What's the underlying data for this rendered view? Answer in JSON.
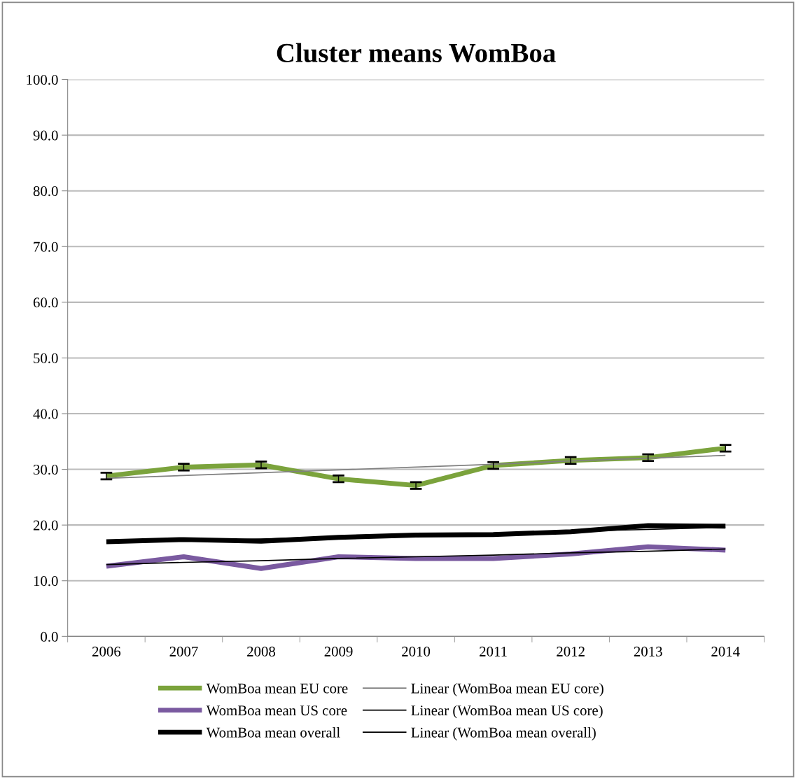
{
  "chart_data": {
    "type": "line",
    "title": "Cluster means WomBoa",
    "categories": [
      "2006",
      "2007",
      "2008",
      "2009",
      "2010",
      "2011",
      "2012",
      "2013",
      "2014"
    ],
    "series": [
      {
        "name": "WomBoa mean EU core",
        "color": "#7ba33c",
        "values": [
          28.8,
          30.4,
          30.8,
          28.3,
          27.1,
          30.7,
          31.6,
          32.1,
          33.8
        ],
        "errors": [
          0.6,
          0.6,
          0.6,
          0.6,
          0.6,
          0.6,
          0.6,
          0.6,
          0.6
        ]
      },
      {
        "name": "WomBoa mean US core",
        "color": "#7a5aa0",
        "values": [
          12.6,
          14.3,
          12.2,
          14.3,
          14.0,
          14.0,
          14.8,
          16.1,
          15.5
        ]
      },
      {
        "name": "WomBoa mean overall",
        "color": "#000000",
        "values": [
          17.0,
          17.4,
          17.1,
          17.8,
          18.2,
          18.3,
          18.8,
          19.9,
          19.8
        ]
      },
      {
        "name": "Linear (WomBoa mean EU core)",
        "color": "#808080",
        "values": [
          28.4,
          28.9,
          29.4,
          29.9,
          30.4,
          30.9,
          31.5,
          32.0,
          32.5
        ]
      },
      {
        "name": "Linear (WomBoa mean US core)",
        "color": "#000000",
        "values": [
          12.9,
          13.3,
          13.6,
          14.0,
          14.3,
          14.6,
          15.0,
          15.3,
          15.7
        ]
      },
      {
        "name": "Linear (WomBoa mean overall)",
        "color": "#000000",
        "values": [
          16.8,
          17.2,
          17.5,
          17.9,
          18.2,
          18.5,
          18.9,
          19.2,
          19.6
        ]
      }
    ],
    "ylim": [
      0,
      100
    ],
    "yticks": [
      {
        "value": 0,
        "label": "0.0"
      },
      {
        "value": 10,
        "label": "10.0"
      },
      {
        "value": 20,
        "label": "20.0"
      },
      {
        "value": 30,
        "label": "30.0"
      },
      {
        "value": 40,
        "label": "40.0"
      },
      {
        "value": 50,
        "label": "50.0"
      },
      {
        "value": 60,
        "label": "60.0"
      },
      {
        "value": 70,
        "label": "70.0"
      },
      {
        "value": 80,
        "label": "80.0"
      },
      {
        "value": 90,
        "label": "90.0"
      },
      {
        "value": 100,
        "label": "100.0"
      }
    ],
    "grid": "y",
    "legend": "bottom",
    "marker": "none",
    "line_style": "solid"
  }
}
